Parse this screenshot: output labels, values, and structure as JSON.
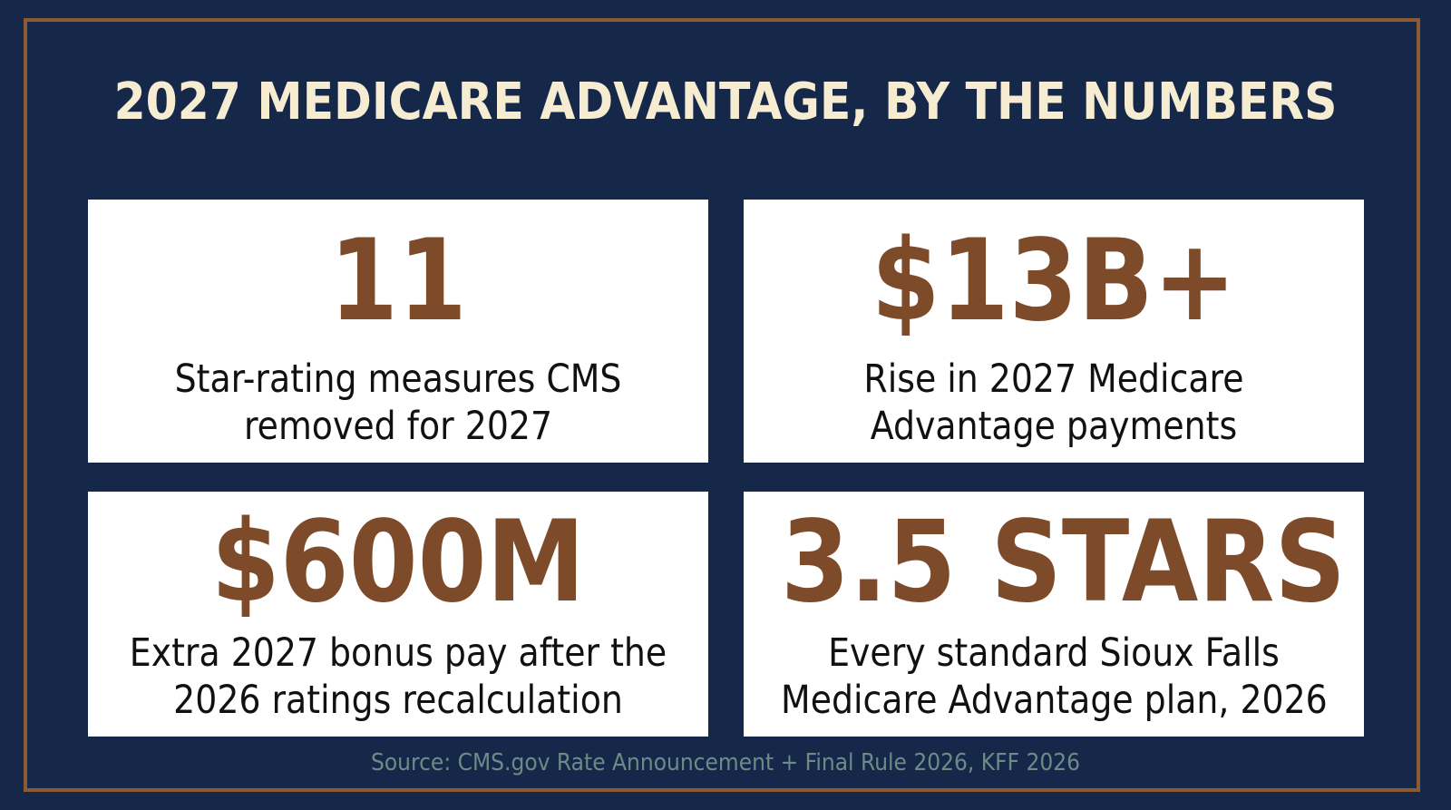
{
  "title": "2027 MEDICARE ADVANTAGE, BY THE NUMBERS",
  "cards": [
    {
      "value": "11",
      "line1": "Star-rating measures CMS",
      "line2": "removed for 2027"
    },
    {
      "value": "$13B+",
      "line1": "Rise in 2027 Medicare",
      "line2": "Advantage payments"
    },
    {
      "value": "$600M",
      "line1": "Extra 2027 bonus pay after the",
      "line2": "2026 ratings recalculation"
    },
    {
      "value": "3.5 STARS",
      "line1": "Every standard Sioux Falls",
      "line2": "Medicare Advantage plan, 2026"
    }
  ],
  "source": "Source: CMS.gov Rate Announcement + Final Rule 2026, KFF 2026",
  "colors": {
    "background": "#16284a",
    "border": "#8a5a35",
    "title": "#f6ecd2",
    "value": "#7d4a2a",
    "source": "#6f8a86"
  }
}
